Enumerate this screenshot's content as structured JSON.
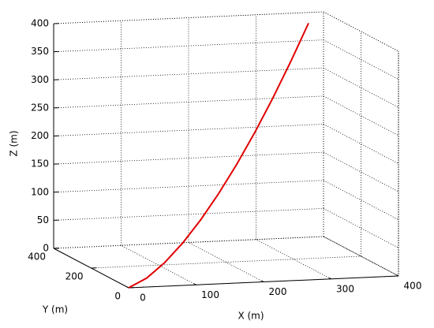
{
  "chart_data": {
    "type": "line3d",
    "xlabel": "X (m)",
    "ylabel": "Y (m)",
    "zlabel": "Z (m)",
    "xlim": [
      0,
      400
    ],
    "xticks": [
      0,
      100,
      200,
      300,
      400
    ],
    "ylim": [
      0,
      400
    ],
    "yticks": [
      0,
      200,
      400
    ],
    "zlim": [
      0,
      400
    ],
    "zticks": [
      0,
      50,
      100,
      150,
      200,
      250,
      300,
      350,
      400
    ],
    "grid": true,
    "series": [
      {
        "color": "#e00000",
        "x": [
          0,
          35,
          70,
          105,
          140,
          175,
          210,
          245,
          280,
          315,
          350
        ],
        "y": [
          0,
          30,
          60,
          90,
          120,
          150,
          180,
          210,
          240,
          270,
          300
        ],
        "z": [
          0,
          10.0,
          30.5,
          58.2,
          92.3,
          132.0,
          176.7,
          226.0,
          279.9,
          338.0,
          400
        ]
      }
    ]
  }
}
